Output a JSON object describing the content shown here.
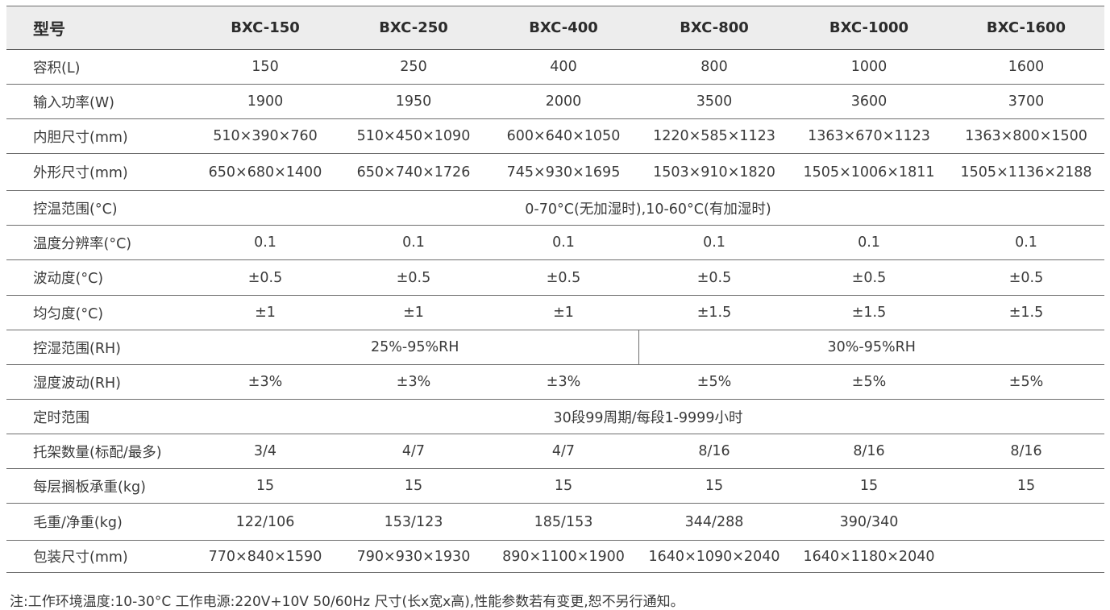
{
  "table": {
    "header": {
      "label": "型号",
      "models": [
        "BXC-150",
        "BXC-250",
        "BXC-400",
        "BXC-800",
        "BXC-1000",
        "BXC-1600"
      ]
    },
    "rows": [
      {
        "label": "容积(L)",
        "values": [
          "150",
          "250",
          "400",
          "800",
          "1000",
          "1600"
        ]
      },
      {
        "label": "输入功率(W)",
        "values": [
          "1900",
          "1950",
          "2000",
          "3500",
          "3600",
          "3700"
        ]
      },
      {
        "label": "内胆尺寸(mm)",
        "values": [
          "510×390×760",
          "510×450×1090",
          "600×640×1050",
          "1220×585×1123",
          "1363×670×1123",
          "1363×800×1500"
        ]
      },
      {
        "label": "外形尺寸(mm)",
        "values": [
          "650×680×1400",
          "650×740×1726",
          "745×930×1695",
          "1503×910×1820",
          "1505×1006×1811",
          "1505×1136×2188"
        ]
      },
      {
        "label": "控温范围(°C)",
        "span_value": "0-70°C(无加湿时),10-60°C(有加湿时)"
      },
      {
        "label": "温度分辨率(°C)",
        "values": [
          "0.1",
          "0.1",
          "0.1",
          "0.1",
          "0.1",
          "0.1"
        ]
      },
      {
        "label": "波动度(°C)",
        "values": [
          "±0.5",
          "±0.5",
          "±0.5",
          "±0.5",
          "±0.5",
          "±0.5"
        ]
      },
      {
        "label": "均匀度(°C)",
        "values": [
          "±1",
          "±1",
          "±1",
          "±1.5",
          "±1.5",
          "±1.5"
        ]
      },
      {
        "label": "控湿范围(RH)",
        "split_left": "25%-95%RH",
        "split_right": "30%-95%RH"
      },
      {
        "label": "湿度波动(RH)",
        "values": [
          "±3%",
          "±3%",
          "±3%",
          "±5%",
          "±5%",
          "±5%"
        ]
      },
      {
        "label": "定时范围",
        "span_value": "30段99周期/每段1-9999小时"
      },
      {
        "label": "托架数量(标配/最多)",
        "values": [
          "3/4",
          "4/7",
          "4/7",
          "8/16",
          "8/16",
          "8/16"
        ]
      },
      {
        "label": "每层搁板承重(kg)",
        "values": [
          "15",
          "15",
          "15",
          "15",
          "15",
          "15"
        ]
      },
      {
        "label": "毛重/净重(kg)",
        "values": [
          "122/106",
          "153/123",
          "185/153",
          "344/288",
          "390/340",
          ""
        ]
      },
      {
        "label": "包装尺寸(mm)",
        "values": [
          "770×840×1590",
          "790×930×1930",
          "890×1100×1900",
          "1640×1090×2040",
          "1640×1180×2040",
          ""
        ]
      }
    ]
  },
  "footnote": "注:工作环境温度:10-30°C 工作电源:220V+10V 50/60Hz 尺寸(长x宽x高),性能参数若有变更,恕不另行通知。"
}
